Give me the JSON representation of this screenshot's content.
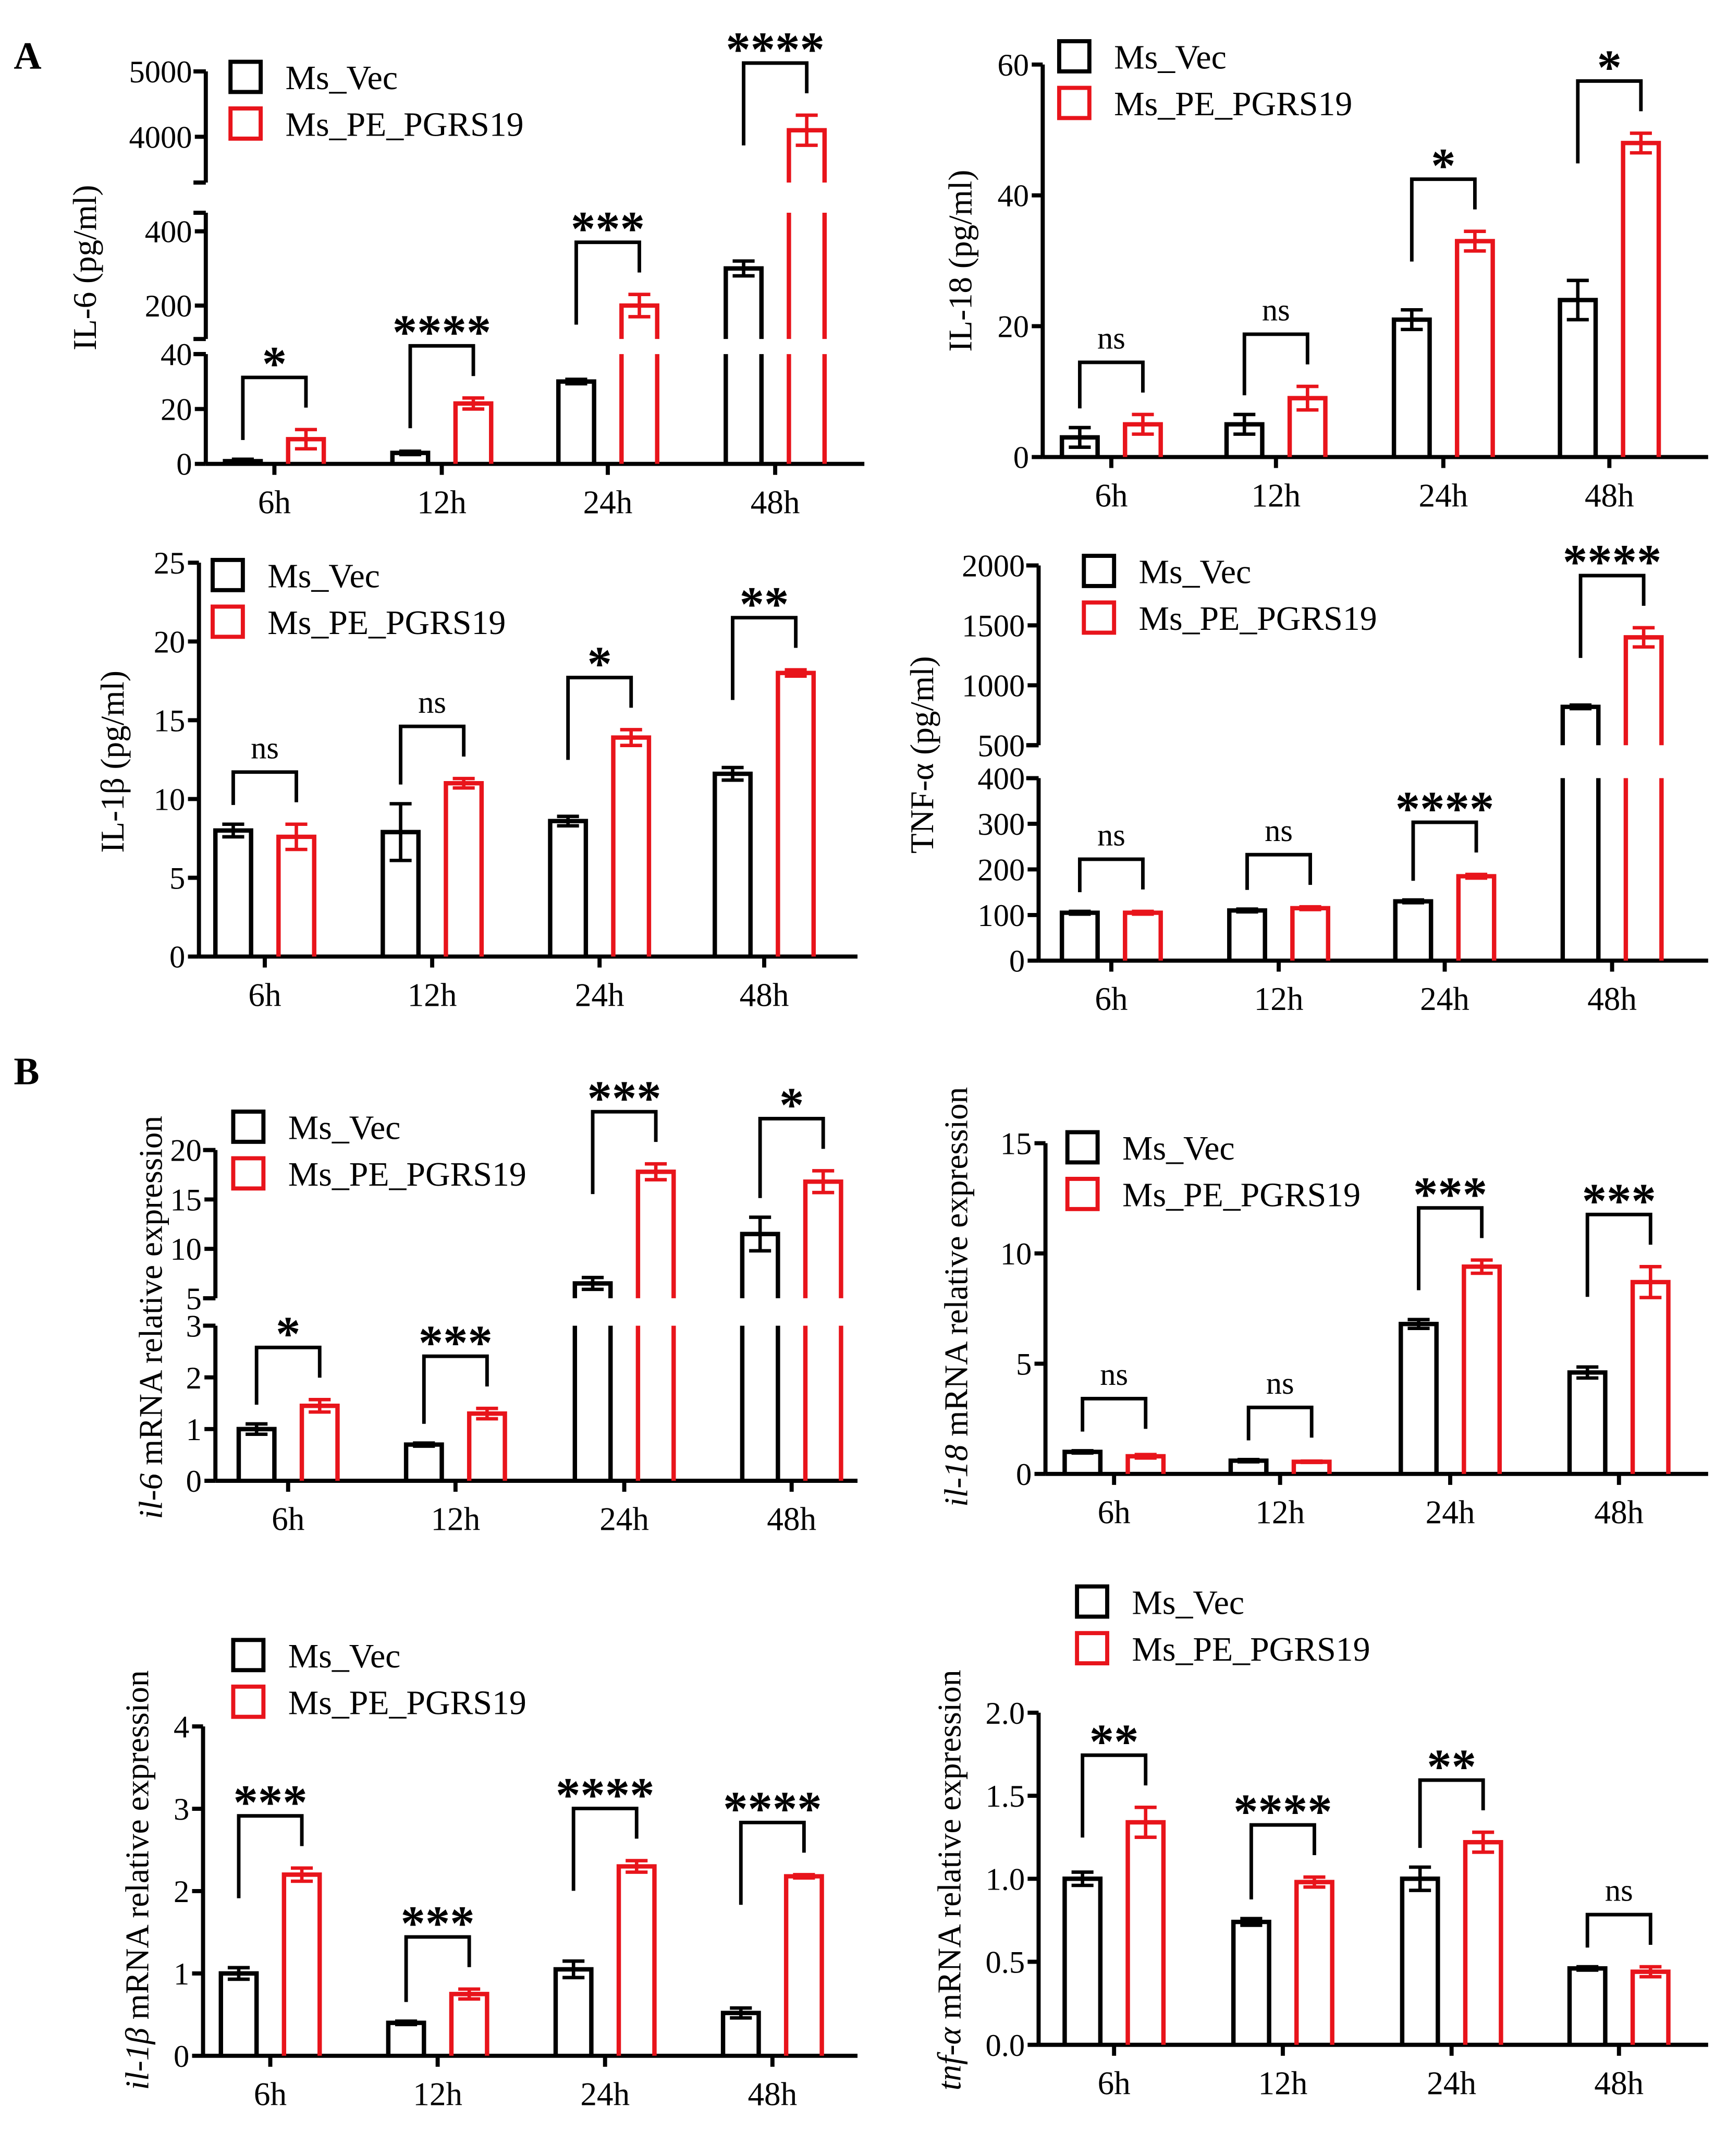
{
  "panel_labels": [
    "A",
    "B"
  ],
  "colors": {
    "Ms_Vec": "#000000",
    "Ms_PE_PGRS19": "#e8141b"
  },
  "chart_data": [
    {
      "panel": "A",
      "type": "bar",
      "ylabel": "IL-6 (pg/ml)",
      "gene": "",
      "categories": [
        "6h",
        "12h",
        "24h",
        "48h"
      ],
      "legend": [
        "Ms_Vec",
        "Ms_PE_PGRS19"
      ],
      "series": [
        {
          "name": "Ms_Vec",
          "values": [
            1,
            4,
            30,
            300
          ],
          "errors": [
            0.7,
            0.6,
            0.8,
            20
          ]
        },
        {
          "name": "Ms_PE_PGRS19",
          "values": [
            9,
            22,
            200,
            4100
          ],
          "errors": [
            3.5,
            2,
            30,
            230
          ]
        }
      ],
      "significance": [
        "*",
        "****",
        "***",
        "****"
      ],
      "y_segments": [
        {
          "range": [
            0,
            40
          ],
          "ticks": [
            0,
            20,
            40
          ]
        },
        {
          "range": [
            110,
            450
          ],
          "ticks": [
            200,
            400
          ]
        },
        {
          "range": [
            3300,
            5000
          ],
          "ticks": [
            4000,
            5000
          ]
        }
      ]
    },
    {
      "panel": "A",
      "type": "bar",
      "ylabel": "IL-18 (pg/ml)",
      "gene": "",
      "categories": [
        "6h",
        "12h",
        "24h",
        "48h"
      ],
      "legend": [
        "Ms_Vec",
        "Ms_PE_PGRS19"
      ],
      "series": [
        {
          "name": "Ms_Vec",
          "values": [
            3,
            5,
            21,
            24
          ],
          "errors": [
            1.5,
            1.5,
            1.5,
            3
          ]
        },
        {
          "name": "Ms_PE_PGRS19",
          "values": [
            5,
            9,
            33,
            48
          ],
          "errors": [
            1.5,
            1.8,
            1.5,
            1.5
          ]
        }
      ],
      "significance": [
        "ns",
        "ns",
        "*",
        "*"
      ],
      "y_segments": [
        {
          "range": [
            0,
            60
          ],
          "ticks": [
            0,
            20,
            40,
            60
          ]
        }
      ]
    },
    {
      "panel": "A",
      "type": "bar",
      "ylabel": "IL-1β (pg/ml)",
      "gene": "",
      "categories": [
        "6h",
        "12h",
        "24h",
        "48h"
      ],
      "legend": [
        "Ms_Vec",
        "Ms_PE_PGRS19"
      ],
      "series": [
        {
          "name": "Ms_Vec",
          "values": [
            8,
            7.9,
            8.6,
            11.6
          ],
          "errors": [
            0.4,
            1.8,
            0.3,
            0.4
          ]
        },
        {
          "name": "Ms_PE_PGRS19",
          "values": [
            7.6,
            11,
            13.9,
            18
          ],
          "errors": [
            0.8,
            0.3,
            0.5,
            0.2
          ]
        }
      ],
      "significance": [
        "ns",
        "ns",
        "*",
        "**"
      ],
      "y_segments": [
        {
          "range": [
            0,
            25
          ],
          "ticks": [
            0,
            5,
            10,
            15,
            20,
            25
          ]
        }
      ]
    },
    {
      "panel": "A",
      "type": "bar",
      "ylabel": "TNF-α (pg/ml)",
      "gene": "",
      "categories": [
        "6h",
        "12h",
        "24h",
        "48h"
      ],
      "legend": [
        "Ms_Vec",
        "Ms_PE_PGRS19"
      ],
      "series": [
        {
          "name": "Ms_Vec",
          "values": [
            105,
            110,
            130,
            820
          ],
          "errors": [
            3,
            3,
            3,
            15
          ]
        },
        {
          "name": "Ms_PE_PGRS19",
          "values": [
            105,
            115,
            185,
            1400
          ],
          "errors": [
            3,
            3,
            4,
            80
          ]
        }
      ],
      "significance": [
        "ns",
        "ns",
        "****",
        "****"
      ],
      "y_segments": [
        {
          "range": [
            0,
            400
          ],
          "ticks": [
            0,
            100,
            200,
            300,
            400
          ]
        },
        {
          "range": [
            500,
            2000
          ],
          "ticks": [
            500,
            1000,
            1500,
            2000
          ]
        }
      ]
    },
    {
      "panel": "B",
      "type": "bar",
      "ylabel": " mRNA relative expression",
      "gene": "il-6",
      "categories": [
        "6h",
        "12h",
        "24h",
        "48h"
      ],
      "legend": [
        "Ms_Vec",
        "Ms_PE_PGRS19"
      ],
      "series": [
        {
          "name": "Ms_Vec",
          "values": [
            1.0,
            0.7,
            6.5,
            11.5
          ],
          "errors": [
            0.1,
            0.03,
            0.6,
            1.7
          ]
        },
        {
          "name": "Ms_PE_PGRS19",
          "values": [
            1.45,
            1.3,
            17.8,
            16.8
          ],
          "errors": [
            0.12,
            0.1,
            0.8,
            1.1
          ]
        }
      ],
      "significance": [
        "*",
        "***",
        "***",
        "*"
      ],
      "y_segments": [
        {
          "range": [
            0,
            3
          ],
          "ticks": [
            0,
            1,
            2,
            3
          ]
        },
        {
          "range": [
            5,
            20
          ],
          "ticks": [
            5,
            10,
            15,
            20
          ]
        }
      ]
    },
    {
      "panel": "B",
      "type": "bar",
      "ylabel": " mRNA relative expression",
      "gene": "il-18",
      "categories": [
        "6h",
        "12h",
        "24h",
        "48h"
      ],
      "legend": [
        "Ms_Vec",
        "Ms_PE_PGRS19"
      ],
      "series": [
        {
          "name": "Ms_Vec",
          "values": [
            1.0,
            0.6,
            6.8,
            4.6
          ],
          "errors": [
            0.05,
            0.05,
            0.2,
            0.25
          ]
        },
        {
          "name": "Ms_PE_PGRS19",
          "values": [
            0.8,
            0.55,
            9.4,
            8.7
          ],
          "errors": [
            0.08,
            0.03,
            0.3,
            0.7
          ]
        }
      ],
      "significance": [
        "ns",
        "ns",
        "***",
        "***"
      ],
      "y_segments": [
        {
          "range": [
            0,
            15
          ],
          "ticks": [
            0,
            5,
            10,
            15
          ]
        }
      ]
    },
    {
      "panel": "B",
      "type": "bar",
      "ylabel": " mRNA relative expression",
      "gene": "il-1β",
      "categories": [
        "6h",
        "12h",
        "24h",
        "48h"
      ],
      "legend": [
        "Ms_Vec",
        "Ms_PE_PGRS19"
      ],
      "series": [
        {
          "name": "Ms_Vec",
          "values": [
            1.0,
            0.4,
            1.05,
            0.52
          ],
          "errors": [
            0.07,
            0.02,
            0.1,
            0.06
          ]
        },
        {
          "name": "Ms_PE_PGRS19",
          "values": [
            2.2,
            0.75,
            2.3,
            2.18
          ],
          "errors": [
            0.08,
            0.06,
            0.07,
            0.02
          ]
        }
      ],
      "significance": [
        "***",
        "***",
        "****",
        "****"
      ],
      "y_segments": [
        {
          "range": [
            0,
            4
          ],
          "ticks": [
            0,
            1,
            2,
            3,
            4
          ]
        }
      ]
    },
    {
      "panel": "B",
      "type": "bar",
      "ylabel": " mRNA relative expression",
      "gene": "tnf-α",
      "categories": [
        "6h",
        "12h",
        "24h",
        "48h"
      ],
      "legend": [
        "Ms_Vec",
        "Ms_PE_PGRS19"
      ],
      "series": [
        {
          "name": "Ms_Vec",
          "values": [
            1.0,
            0.74,
            1.0,
            0.46
          ],
          "errors": [
            0.04,
            0.02,
            0.07,
            0.01
          ]
        },
        {
          "name": "Ms_PE_PGRS19",
          "values": [
            1.34,
            0.98,
            1.22,
            0.44
          ],
          "errors": [
            0.09,
            0.03,
            0.06,
            0.03
          ]
        }
      ],
      "significance": [
        "**",
        "****",
        "**",
        "ns"
      ],
      "y_segments": [
        {
          "range": [
            0,
            2.0
          ],
          "ticks": [
            "0.0",
            "0.5",
            "1.0",
            "1.5",
            "2.0"
          ]
        }
      ]
    }
  ]
}
